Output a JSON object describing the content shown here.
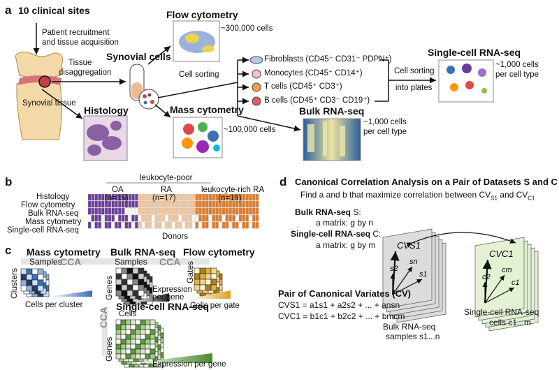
{
  "panel_a": {
    "label": "a",
    "sites": "10 clinical sites",
    "recruitment_1": "Patient recruitment",
    "recruitment_2": "and tissue acquisition",
    "tissue_1": "Tissue",
    "tissue_2": "disaggregation",
    "synovial_tissue": "Synovial tissue",
    "synovial_cells": "Synovial cells",
    "histology": "Histology",
    "flow": "Flow cytometry",
    "flow_count": "~300,000 cells",
    "mass": "Mass cytometry",
    "mass_count": "~100,000 cells",
    "cell_sorting": "Cell sorting",
    "cell_sorting_2": "Cell sorting",
    "into_plates": "into plates",
    "fibroblasts": "Fibroblasts (CD45⁻ CD31⁻ PDPN⁺)",
    "monocytes": "Monocytes (CD45⁺ CD14⁺)",
    "tcells": "T cells (CD45⁺ CD3⁺)",
    "bcells": "B cells (CD45⁺ CD3⁻ CD19⁺)",
    "scrnaseq": "Single-cell RNA-seq",
    "sc_count_1": "~1,000 cells",
    "sc_count_2": "per cell type",
    "bulk": "Bulk RNA-seq",
    "bulk_count_1": "~1,000 cells",
    "bulk_count_2": "per cell type"
  },
  "panel_b": {
    "label": "b",
    "leukocyte_poor": "leukocyte-poor",
    "oa": "OA",
    "oa_n": "(n=15)",
    "ra": "RA",
    "ra_n": "(n=17)",
    "rich": "leukocyte-rich RA",
    "rich_n": "(n=19)",
    "rows": [
      "Histology",
      "Flow cytometry",
      "Bulk RNA-seq",
      "Mass cytometry",
      "Single-cell RNA-seq"
    ],
    "donors": "Donors",
    "colors": {
      "oa": "#6a3d9a",
      "ra": "#f2c49a",
      "rich": "#e07b2a",
      "missing": "#ffffff"
    }
  },
  "panel_c": {
    "label": "c",
    "mass": "Mass cytometry",
    "bulk": "Bulk RNA-seq",
    "flow": "Flow cytometry",
    "sc": "Single-cell RNA-seq",
    "samples_1": "Samples",
    "samples_2": "Samples",
    "cca_1": "CCA",
    "cca_2": "CCA",
    "cca_3": "CCA",
    "clusters": "Clusters",
    "genes_1": "Genes",
    "genes_2": "Genes",
    "gates": "Gates",
    "cells": "Cells",
    "cells_per_cluster": "Cells per cluster",
    "expression_per_gene_1": "Expression",
    "expression_per_gene_2": "per gene",
    "cells_per_gate": "Cells per gate",
    "expression_per_gene": "Expression per gene"
  },
  "panel_d": {
    "label": "d",
    "title": "Canonical Correlation Analysis on a Pair of Datasets S and C",
    "find": "Find a and b that maximize correlation between CV",
    "find_s1": "S1",
    "find_and": " and CV",
    "find_c1": "C1",
    "bulk_label": "Bulk RNA-seq",
    "bulk_s": " S:",
    "bulk_matrix": "a matrix: g by n",
    "sc_label": "Single-cell RNA-seq",
    "sc_c": " C:",
    "sc_matrix": "a matrix: g by m",
    "pair": "Pair of Canonical Variates (CV)",
    "cv_s1": "CVS1 = a1s1 + a2s2 + ... + ansn",
    "cv_c1": "CVC1 = b1c1 + b2c2 + ... + bmcm",
    "bulk_bottom_1": "Bulk RNA-seq",
    "bulk_bottom_2": "samples s1...n",
    "sc_bottom_1": "Single-cell RNA-seq",
    "sc_bottom_2": "cells c1...m",
    "stack_s": [
      "CVS1",
      "s2",
      "sn",
      "s1"
    ],
    "stack_c": [
      "CVC1",
      "c2",
      "cm",
      "c1"
    ]
  }
}
